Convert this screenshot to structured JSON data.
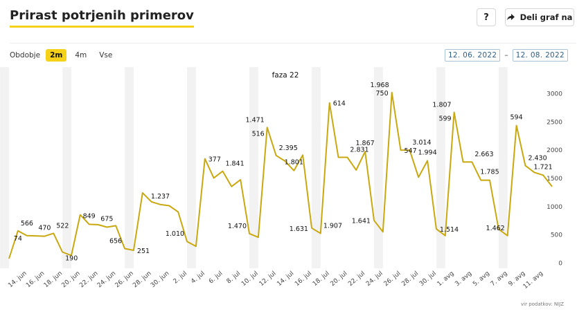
{
  "header": {
    "title": "Prirast potrjenih primerov",
    "help_label": "?",
    "share_label": "Deli graf na"
  },
  "period": {
    "label": "Obdobje",
    "options": [
      "2m",
      "4m",
      "Vse"
    ],
    "selected": "2m"
  },
  "date_range": {
    "from": "12. 06. 2022",
    "separator": "–",
    "to": "12. 08. 2022"
  },
  "source": "vir podatkov: NIJZ",
  "colors": {
    "line": "#c9a80f",
    "weekend_band": "#f2f2f2",
    "accent": "#f5d11a"
  },
  "chart_data": {
    "type": "line",
    "title": "",
    "xlabel": "",
    "ylabel": "",
    "ylim": [
      0,
      3300
    ],
    "y_ticks": [
      "0",
      "500",
      "1000",
      "1500",
      "2000",
      "2500",
      "3000"
    ],
    "grid": false,
    "annotation": "faza 22",
    "x_tick_labels": [
      "14. jun",
      "16. jun",
      "18. jun",
      "20. jun",
      "22. jun",
      "24. jun",
      "26. jun",
      "28. jun",
      "30. jun",
      "2. jul",
      "4. jul",
      "6. jul",
      "8. jul",
      "10. jul",
      "12. jul",
      "14. jul",
      "16. jul",
      "18. jul",
      "20. jul",
      "22. jul",
      "24. jul",
      "26. jul",
      "28. jul",
      "30. jul",
      "1. avg",
      "3. avg",
      "5. avg",
      "7. avg",
      "9. avg",
      "11. avg"
    ],
    "weekend_bands": [
      "11. jun",
      "18. jun",
      "25. jun",
      "2. jul",
      "9. jul",
      "16. jul",
      "23. jul",
      "30. jul",
      "6. avg"
    ],
    "series": [
      {
        "x": [
          "12. jun",
          "13. jun",
          "14. jun",
          "15. jun",
          "16. jun",
          "17. jun",
          "18. jun",
          "19. jun",
          "20. jun",
          "21. jun",
          "22. jun",
          "23. jun",
          "24. jun",
          "25. jun",
          "26. jun",
          "27. jun",
          "28. jun",
          "29. jun",
          "30. jun",
          "1. jul",
          "2. jul",
          "3. jul",
          "4. jul",
          "5. jul",
          "6. jul",
          "7. jul",
          "8. jul",
          "9. jul",
          "10. jul",
          "11. jul",
          "12. jul",
          "13. jul",
          "14. jul",
          "15. jul",
          "16. jul",
          "17. jul",
          "18. jul",
          "19. jul",
          "20. jul",
          "21. jul",
          "22. jul",
          "23. jul",
          "24. jul",
          "25. jul",
          "26. jul",
          "27. jul",
          "28. jul",
          "29. jul",
          "30. jul",
          "31. jul",
          "1. avg",
          "2. avg",
          "3. avg",
          "4. avg",
          "5. avg",
          "6. avg",
          "7. avg",
          "8. avg",
          "9. avg",
          "10. avg",
          "11. avg",
          "12. avg"
        ],
        "values": [
          74,
          566,
          480,
          476,
          470,
          522,
          190,
          130,
          849,
          680,
          675,
          630,
          656,
          251,
          220,
          1237,
          1080,
          1030,
          1010,
          900,
          377,
          290,
          1841,
          1500,
          1620,
          1350,
          1470,
          516,
          450,
          2395,
          1900,
          1801,
          1631,
          1907,
          614,
          520,
          2831,
          1867,
          1867,
          1641,
          1968,
          750,
          547,
          3014,
          1994,
          1994,
          1514,
          1807,
          599,
          480,
          2663,
          1785,
          1785,
          1462,
          1462,
          594,
          480,
          2430,
          1721,
          1600,
          1551,
          1350
        ],
        "labels": [
          {
            "i": 1,
            "text": "74",
            "pos": "below"
          },
          {
            "i": 1,
            "text": "566",
            "pos": "above-right"
          },
          {
            "i": 4,
            "text": "470",
            "pos": "above"
          },
          {
            "i": 6,
            "text": "190",
            "pos": "below-right"
          },
          {
            "i": 5,
            "text": "522",
            "pos": "above-right"
          },
          {
            "i": 9,
            "text": "849",
            "pos": "above"
          },
          {
            "i": 11,
            "text": "675",
            "pos": "above"
          },
          {
            "i": 13,
            "text": "656",
            "pos": "above-left"
          },
          {
            "i": 14,
            "text": "251",
            "pos": "right"
          },
          {
            "i": 17,
            "text": "1.237",
            "pos": "above"
          },
          {
            "i": 20,
            "text": "1.010",
            "pos": "above-left"
          },
          {
            "i": 22,
            "text": "377",
            "pos": "right"
          },
          {
            "i": 24,
            "text": "1.841",
            "pos": "above-right"
          },
          {
            "i": 27,
            "text": "1.470",
            "pos": "above-left"
          },
          {
            "i": 29,
            "text": "1.471",
            "pos": "above-left"
          },
          {
            "i": 29,
            "text": "516",
            "pos": "below-left"
          },
          {
            "i": 30,
            "text": "2.395",
            "pos": "above-right"
          },
          {
            "i": 32,
            "text": "1.801",
            "pos": "above"
          },
          {
            "i": 34,
            "text": "1.631",
            "pos": "left"
          },
          {
            "i": 35,
            "text": "1.907",
            "pos": "above-right"
          },
          {
            "i": 36,
            "text": "614",
            "pos": "right"
          },
          {
            "i": 38,
            "text": "2.831",
            "pos": "above-right"
          },
          {
            "i": 40,
            "text": "1.867",
            "pos": "above"
          },
          {
            "i": 41,
            "text": "1.641",
            "pos": "left"
          },
          {
            "i": 43,
            "text": "1.968",
            "pos": "above-left"
          },
          {
            "i": 43,
            "text": "750",
            "pos": "left"
          },
          {
            "i": 44,
            "text": "547",
            "pos": "right"
          },
          {
            "i": 45,
            "text": "3.014",
            "pos": "above-right"
          },
          {
            "i": 47,
            "text": "1.994",
            "pos": "above"
          },
          {
            "i": 48,
            "text": "1.514",
            "pos": "right"
          },
          {
            "i": 50,
            "text": "1.807",
            "pos": "above-left"
          },
          {
            "i": 50,
            "text": "599",
            "pos": "below-left"
          },
          {
            "i": 52,
            "text": "2.663",
            "pos": "above-right"
          },
          {
            "i": 54,
            "text": "1.785",
            "pos": "above"
          },
          {
            "i": 56,
            "text": "1.462",
            "pos": "above-left"
          },
          {
            "i": 57,
            "text": "594",
            "pos": "above"
          },
          {
            "i": 58,
            "text": "2.430",
            "pos": "above-right"
          },
          {
            "i": 60,
            "text": "1.721",
            "pos": "above"
          }
        ]
      }
    ]
  }
}
